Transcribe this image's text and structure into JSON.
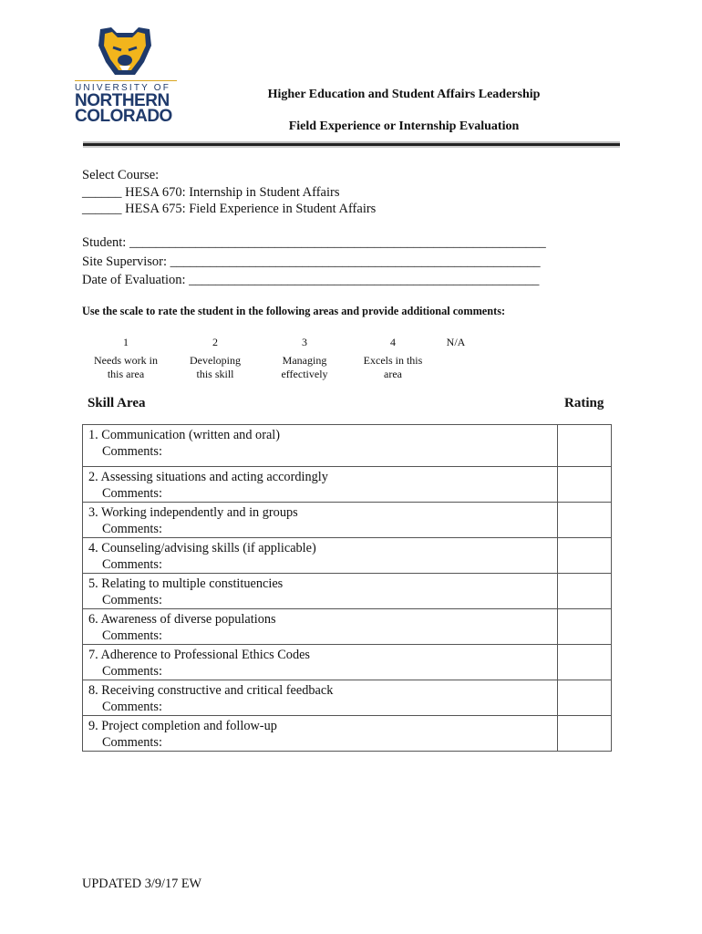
{
  "logo": {
    "line1": "UNIVERSITY OF",
    "line2": "NORTHERN",
    "line3": "COLORADO",
    "colors": {
      "navy": "#1f3a6b",
      "gold": "#f2b51c"
    }
  },
  "header": {
    "title": "Higher Education and Student Affairs Leadership",
    "subtitle": "Field Experience or Internship Evaluation"
  },
  "course": {
    "label": "Select Course:",
    "options": [
      "______ HESA 670: Internship in Student Affairs",
      "______ HESA 675: Field Experience in Student Affairs"
    ]
  },
  "fields": [
    {
      "label": "Student: _______________________________________________________________"
    },
    {
      "label": "Site Supervisor: ________________________________________________________"
    },
    {
      "label": "Date of Evaluation: _____________________________________________________"
    }
  ],
  "instructions": "Use the scale to rate the student in the following areas and provide additional comments:",
  "scale": [
    {
      "num": "1",
      "desc1": "Needs work in",
      "desc2": "this area"
    },
    {
      "num": "2",
      "desc1": "Developing",
      "desc2": "this skill"
    },
    {
      "num": "3",
      "desc1": "Managing",
      "desc2": "effectively"
    },
    {
      "num": "4",
      "desc1": "Excels in this",
      "desc2": "area"
    },
    {
      "num": "N/A",
      "desc1": "",
      "desc2": ""
    }
  ],
  "table": {
    "skill_header": "Skill Area",
    "rating_header": "Rating",
    "comments_label": "Comments:",
    "rows": [
      "1. Communication (written and oral)",
      "2.  Assessing situations and acting accordingly",
      "3. Working independently and in groups",
      "4. Counseling/advising skills (if applicable)",
      "5. Relating to multiple constituencies",
      "6. Awareness of diverse populations",
      "7. Adherence to Professional Ethics Codes",
      "8. Receiving constructive and critical feedback",
      "9. Project completion and follow-up"
    ]
  },
  "footer": "UPDATED 3/9/17 EW"
}
